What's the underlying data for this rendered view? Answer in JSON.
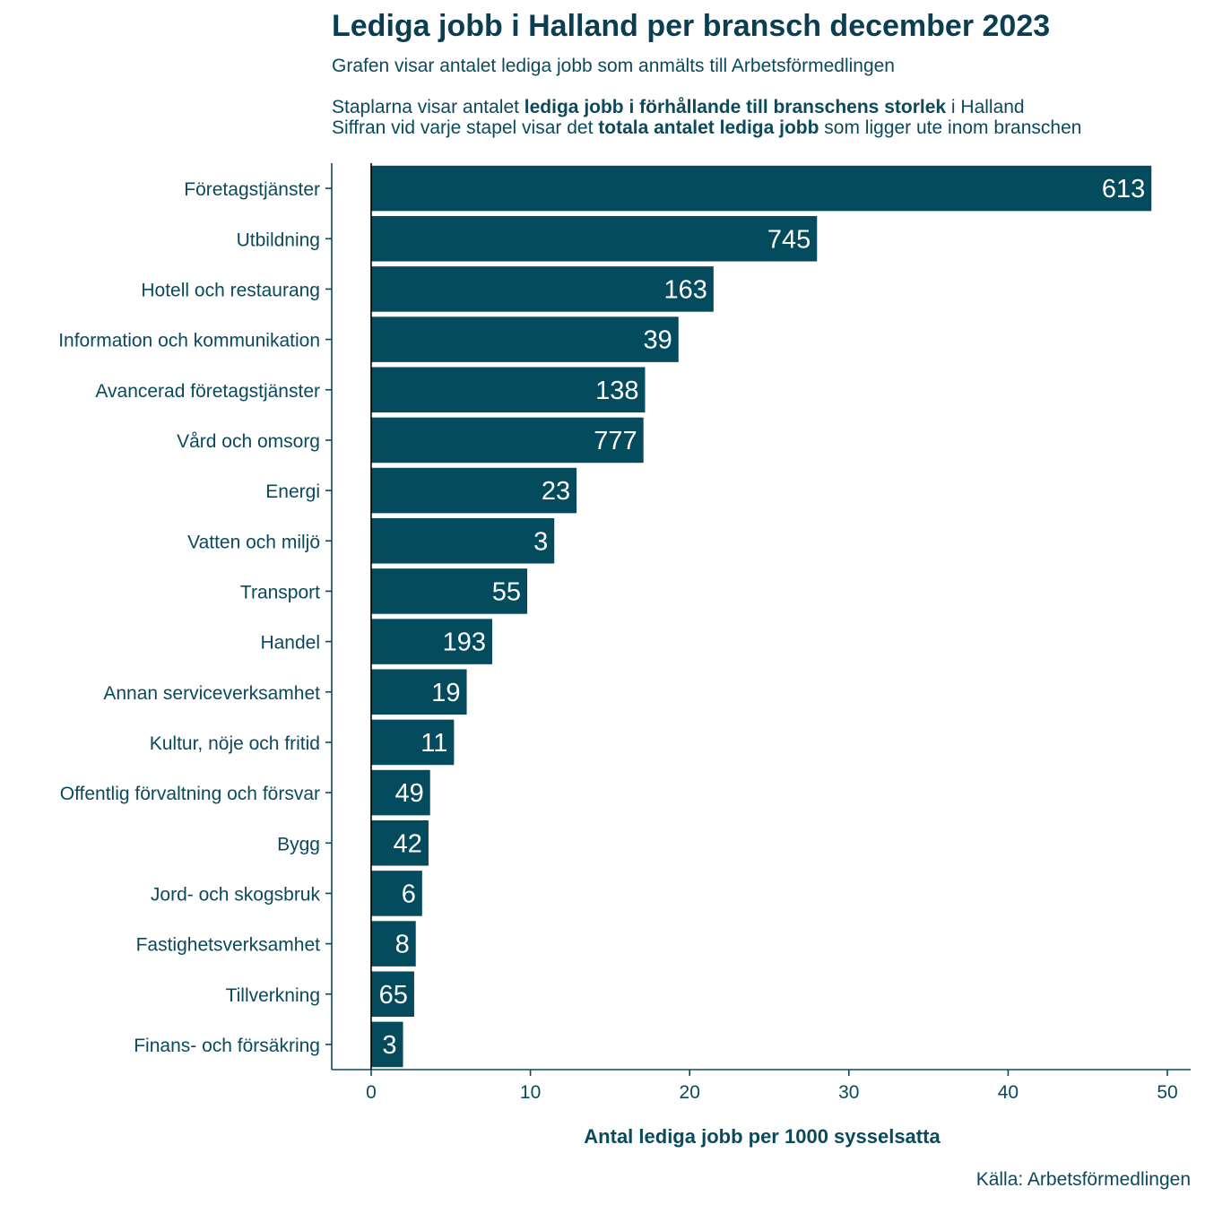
{
  "title": "Lediga jobb i Halland per bransch december 2023",
  "subtitle": "Grafen visar antalet lediga jobb som anmälts till Arbetsförmedlingen",
  "note1": {
    "before": "Staplarna visar antalet ",
    "bold": "lediga jobb i förhållande till branschens storlek",
    "after": " i Halland"
  },
  "note2": {
    "before": "Siffran vid varje stapel visar det ",
    "bold": "totala antalet lediga jobb",
    "after": " som ligger ute inom branschen"
  },
  "source": "Källa: Arbetsförmedlingen",
  "colors": {
    "bar": "#034b5d",
    "text": "#0a4a5c",
    "label": "#ffffff"
  },
  "chart_data": {
    "type": "bar",
    "orientation": "horizontal",
    "categories": [
      "Företagstjänster",
      "Utbildning",
      "Hotell och restaurang",
      "Information och kommunikation",
      "Avancerad företagstjänster",
      "Vård och omsorg",
      "Energi",
      "Vatten och miljö",
      "Transport",
      "Handel",
      "Annan serviceverksamhet",
      "Kultur, nöje och fritid",
      "Offentlig förvaltning och försvar",
      "Bygg",
      "Jord- och skogsbruk",
      "Fastighetsverksamhet",
      "Tillverkning",
      "Finans- och försäkring"
    ],
    "values": [
      49.0,
      28.0,
      21.5,
      19.3,
      17.2,
      17.1,
      12.9,
      11.5,
      9.8,
      7.6,
      6.0,
      5.2,
      3.7,
      3.6,
      3.2,
      2.8,
      2.7,
      2.0
    ],
    "data_labels": [
      "613",
      "745",
      "163",
      "39",
      "138",
      "777",
      "23",
      "3",
      "55",
      "193",
      "19",
      "11",
      "49",
      "42",
      "6",
      "8",
      "65",
      "3"
    ],
    "xlabel": "Antal lediga jobb per 1000 sysselsatta",
    "xlim": [
      0,
      50
    ],
    "xticks": [
      "0",
      "10",
      "20",
      "30",
      "40",
      "50"
    ],
    "grid": false
  }
}
